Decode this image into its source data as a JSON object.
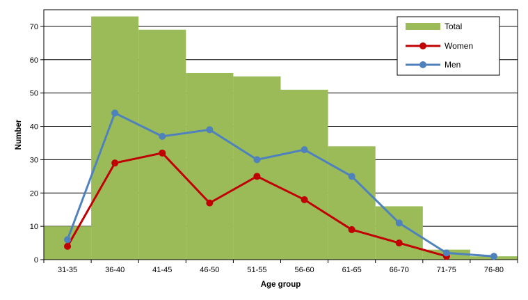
{
  "chart_data": {
    "type": "bar",
    "categories": [
      "31-35",
      "36-40",
      "41-45",
      "46-50",
      "51-55",
      "56-60",
      "61-65",
      "66-70",
      "71-75",
      "76-80"
    ],
    "xlabel": "Age group",
    "ylabel": "Number",
    "ylim": [
      0,
      75
    ],
    "yticks": [
      0,
      10,
      20,
      30,
      40,
      50,
      60,
      70
    ],
    "grid": true,
    "legend_position": "top-right",
    "series": [
      {
        "name": "Total",
        "type": "bar",
        "color": "#9bbb59",
        "values": [
          10,
          73,
          69,
          56,
          55,
          51,
          34,
          16,
          3,
          1
        ]
      },
      {
        "name": "Women",
        "type": "line",
        "color": "#c00000",
        "values": [
          4,
          29,
          32,
          17,
          25,
          18,
          9,
          5,
          1,
          null
        ]
      },
      {
        "name": "Men",
        "type": "line",
        "color": "#4f81bd",
        "values": [
          6,
          44,
          37,
          39,
          30,
          33,
          25,
          11,
          2,
          1
        ]
      }
    ]
  }
}
